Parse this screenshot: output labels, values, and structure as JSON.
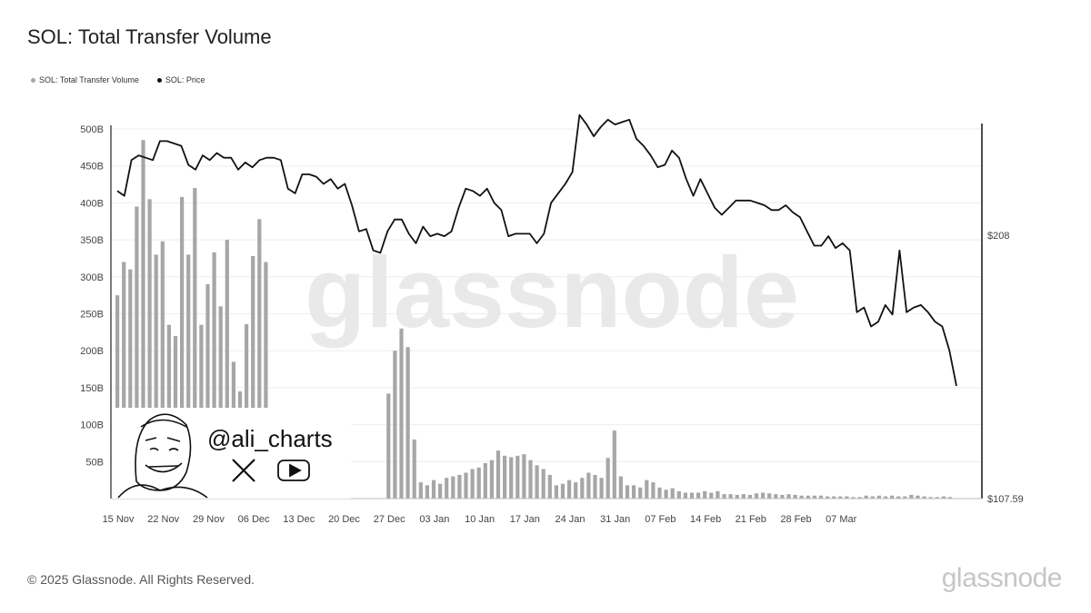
{
  "chart_data": {
    "type": "bar+line",
    "title": "SOL: Total Transfer Volume",
    "legend": {
      "placement": "top-left",
      "entries": [
        "SOL: Total Transfer Volume",
        "SOL: Price"
      ]
    },
    "x_ticks": [
      "15 Nov",
      "22 Nov",
      "29 Nov",
      "06 Dec",
      "13 Dec",
      "20 Dec",
      "27 Dec",
      "03 Jan",
      "10 Jan",
      "17 Jan",
      "24 Jan",
      "31 Jan",
      "07 Feb",
      "14 Feb",
      "21 Feb",
      "28 Feb",
      "07 Mar"
    ],
    "y_left_ticks": [
      "50B",
      "100B",
      "150B",
      "200B",
      "250B",
      "300B",
      "350B",
      "400B",
      "450B",
      "500B"
    ],
    "y_left_range": [
      0,
      500
    ],
    "y_right_labels": [
      "$208",
      "$107.59"
    ],
    "y_right_range": [
      107.59,
      260
    ],
    "grid": true,
    "series": [
      {
        "name": "SOL: Total Transfer Volume",
        "kind": "bar",
        "color": "#a6a6a6",
        "start_date": "2024-11-15",
        "values_billions": [
          275,
          320,
          310,
          395,
          485,
          405,
          330,
          348,
          235,
          220,
          408,
          330,
          420,
          235,
          290,
          333,
          260,
          350,
          185,
          145,
          236,
          328,
          378,
          320,
          0,
          0,
          0,
          0,
          0,
          0,
          0,
          0,
          0,
          0,
          0,
          0,
          0,
          0,
          0,
          0,
          0,
          0,
          142,
          200,
          230,
          205,
          80,
          22,
          18,
          25,
          20,
          28,
          30,
          32,
          35,
          40,
          42,
          48,
          52,
          65,
          58,
          56,
          58,
          60,
          52,
          45,
          40,
          32,
          18,
          20,
          25,
          22,
          28,
          35,
          32,
          28,
          55,
          92,
          30,
          18,
          18,
          15,
          25,
          22,
          15,
          12,
          14,
          10,
          8,
          8,
          8,
          10,
          8,
          10,
          6,
          6,
          5,
          6,
          5,
          7,
          8,
          7,
          6,
          5,
          6,
          5,
          4,
          4,
          4,
          4,
          3,
          3,
          3,
          3,
          2,
          2,
          4,
          3,
          4,
          3,
          4,
          3,
          3,
          5,
          4,
          3,
          2,
          2,
          3,
          2
        ]
      },
      {
        "name": "SOL: Price",
        "kind": "line",
        "color": "#111111",
        "start_date": "2024-11-15",
        "values_usd": [
          237,
          235,
          250,
          252,
          251,
          250,
          258,
          258,
          257,
          256,
          248,
          246,
          252,
          250,
          253,
          251,
          251,
          246,
          249,
          247,
          250,
          251,
          251,
          250,
          238,
          236,
          244,
          244,
          243,
          240,
          242,
          238,
          240,
          231,
          220,
          221,
          212,
          211,
          220,
          225,
          225,
          219,
          215,
          222,
          218,
          219,
          218,
          220,
          230,
          238,
          237,
          235,
          238,
          232,
          229,
          218,
          219,
          219,
          219,
          215,
          219,
          232,
          236,
          240,
          245,
          269,
          265,
          260,
          264,
          267,
          265,
          266,
          267,
          259,
          256,
          252,
          247,
          248,
          254,
          251,
          242,
          235,
          242,
          236,
          230,
          227,
          230,
          233,
          233,
          233,
          232,
          231,
          229,
          229,
          231,
          228,
          226,
          220,
          214,
          214,
          218,
          213,
          215,
          212,
          186,
          188,
          180,
          182,
          189,
          185,
          212,
          186,
          188,
          189,
          186,
          182,
          180,
          170,
          155
        ],
        "x_end_index": 130
      }
    ]
  },
  "overlay": {
    "watermark": "glassnode",
    "handle": "@ali_charts",
    "social_icons": [
      "x-icon",
      "youtube-icon"
    ]
  },
  "footer": {
    "copyright": "© 2025 Glassnode. All Rights Reserved.",
    "brand": "glassnode"
  },
  "colors": {
    "bar": "#a6a6a6",
    "line": "#111111",
    "grid": "#eeeeee",
    "axis": "#222222"
  }
}
